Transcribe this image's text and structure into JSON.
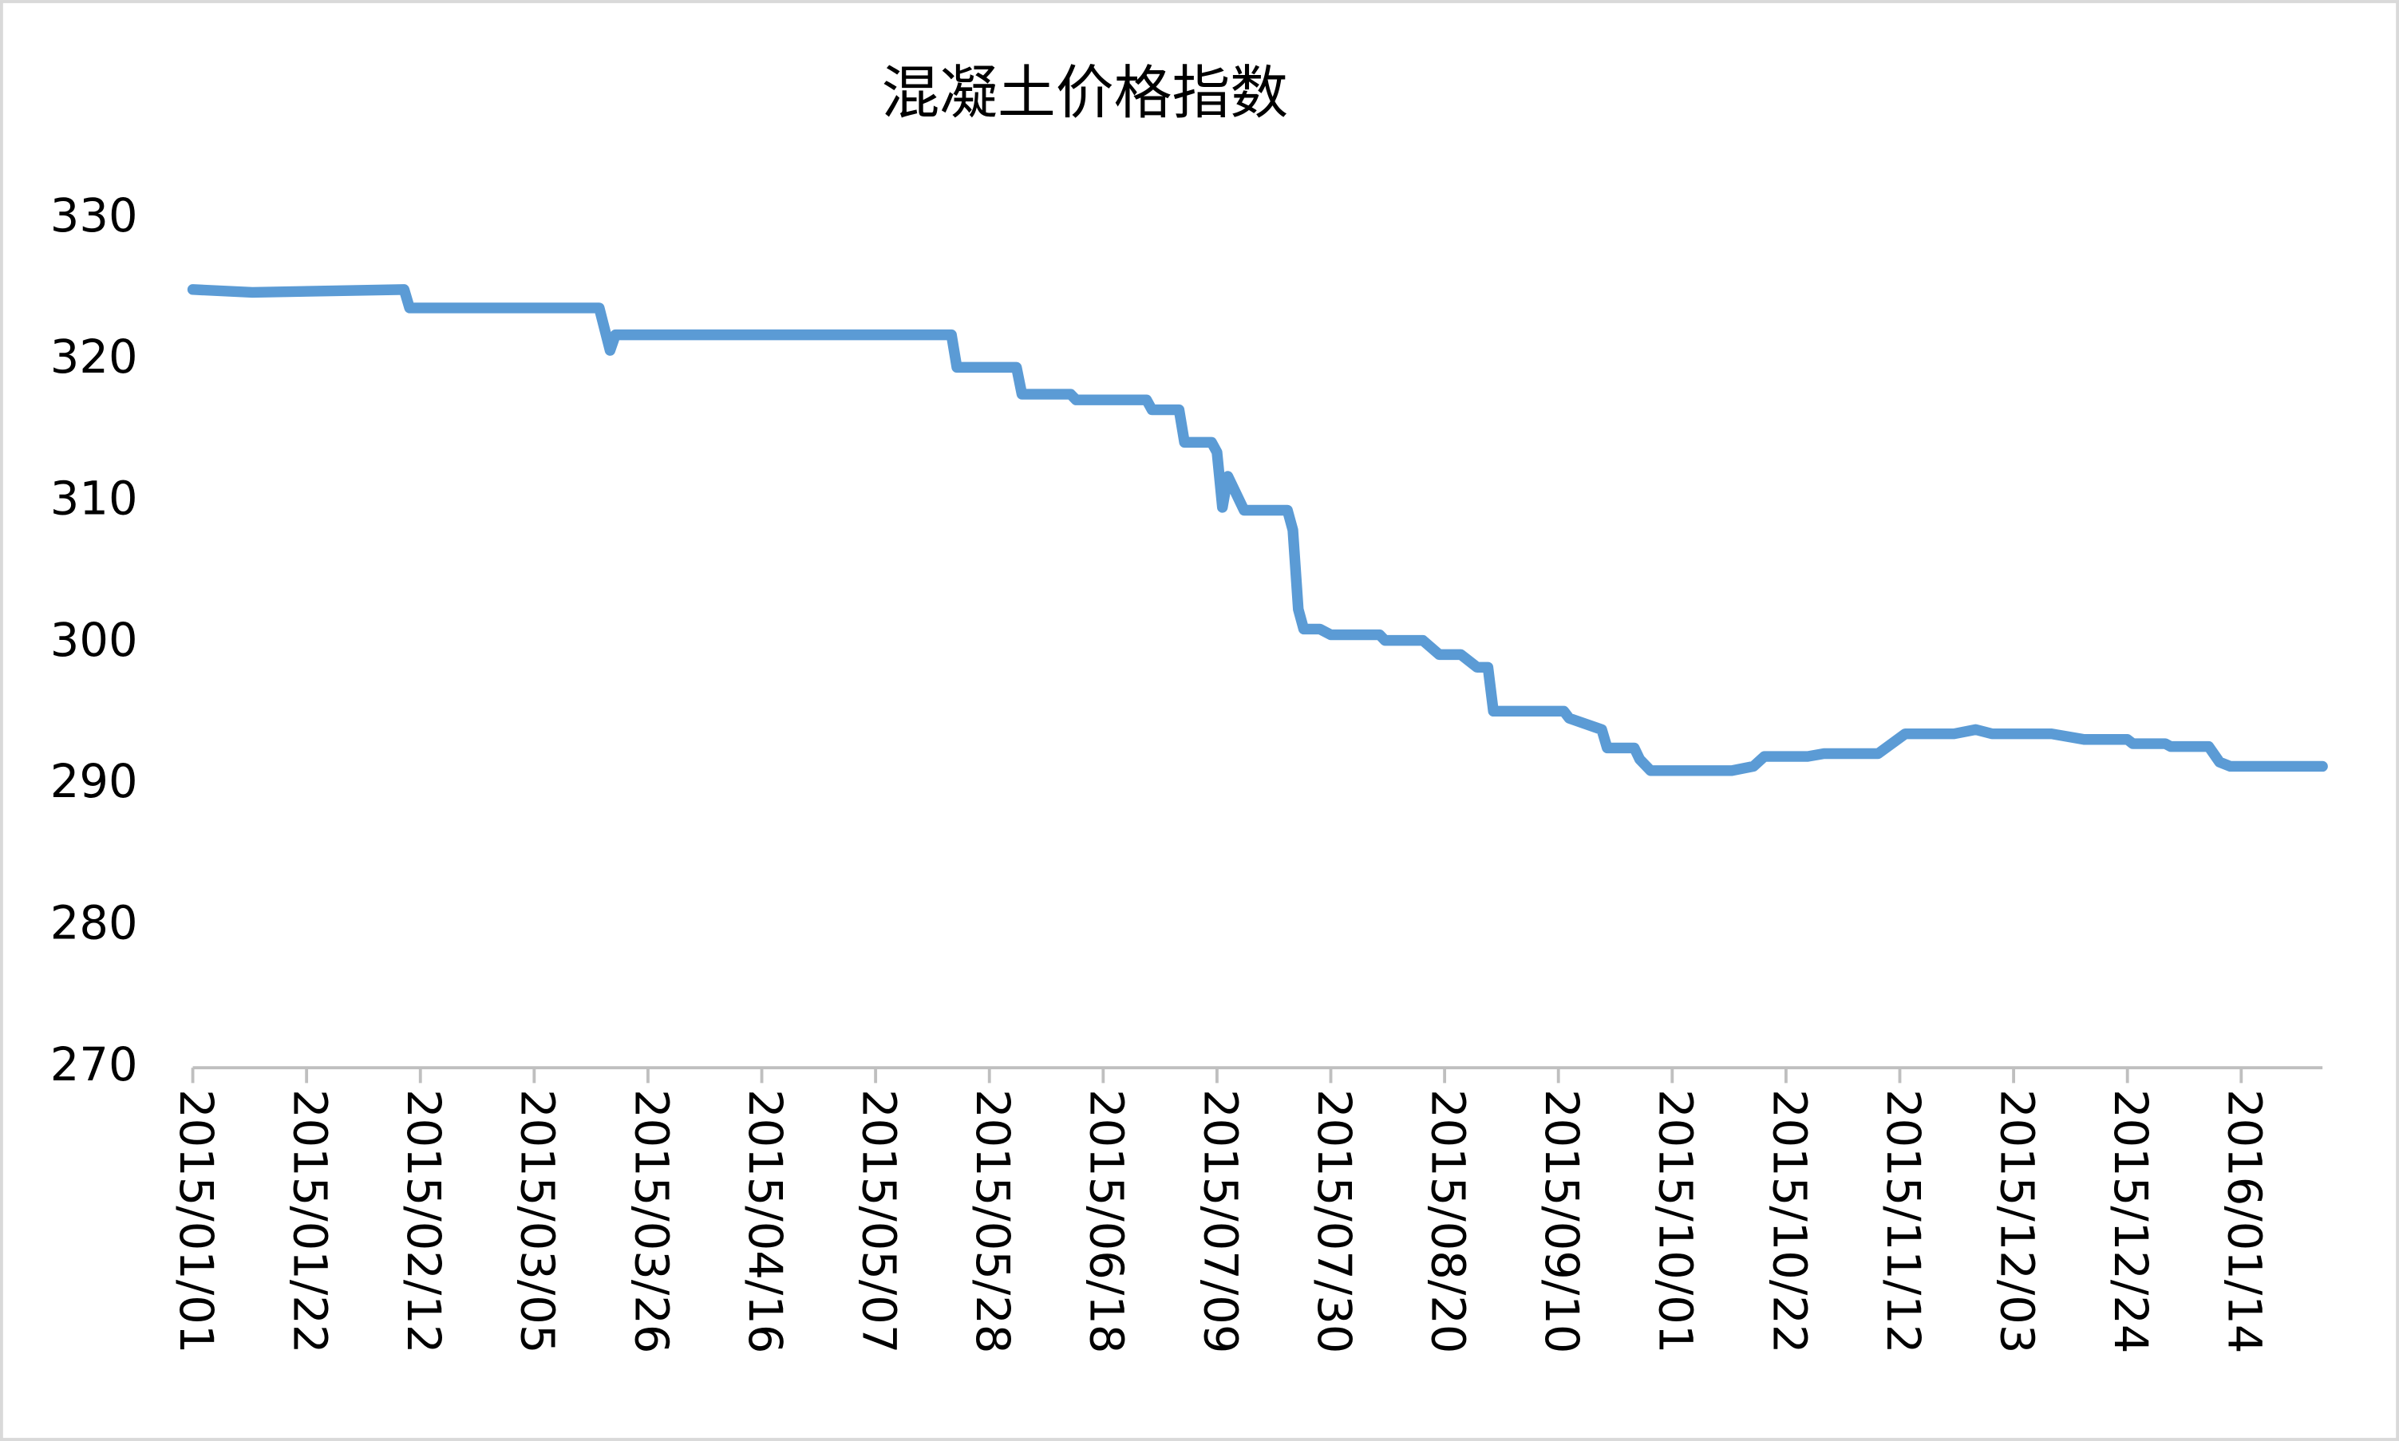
{
  "chart_data": {
    "type": "line",
    "title": "混凝土价格指数",
    "x": [
      "2015/01/01",
      "2015/01/12",
      "2015/02/09",
      "2015/02/10",
      "2015/03/17",
      "2015/03/19",
      "2015/03/20",
      "2015/05/21",
      "2015/05/22",
      "2015/06/02",
      "2015/06/03",
      "2015/06/12",
      "2015/06/13",
      "2015/06/26",
      "2015/06/27",
      "2015/07/02",
      "2015/07/03",
      "2015/07/08",
      "2015/07/09",
      "2015/07/10",
      "2015/07/11",
      "2015/07/14",
      "2015/07/22",
      "2015/07/23",
      "2015/07/24",
      "2015/07/25",
      "2015/07/28",
      "2015/07/30",
      "2015/08/08",
      "2015/08/09",
      "2015/08/16",
      "2015/08/19",
      "2015/08/23",
      "2015/08/26",
      "2015/08/28",
      "2015/08/29",
      "2015/09/11",
      "2015/09/12",
      "2015/09/18",
      "2015/09/19",
      "2015/09/24",
      "2015/09/25",
      "2015/09/27",
      "2015/10/12",
      "2015/10/16",
      "2015/10/18",
      "2015/10/26",
      "2015/10/29",
      "2015/11/08",
      "2015/11/13",
      "2015/11/22",
      "2015/11/26",
      "2015/11/29",
      "2015/12/10",
      "2015/12/16",
      "2015/12/24",
      "2015/12/25",
      "2015/12/31",
      "2016/01/01",
      "2016/01/08",
      "2016/01/10",
      "2016/01/12",
      "2016/01/29"
    ],
    "series": [
      {
        "name": "混凝土价格指数",
        "color": "#5b9bd5",
        "values": [
          325.0,
          324.8,
          325.0,
          323.7,
          323.7,
          320.7,
          321.8,
          321.8,
          319.5,
          319.5,
          317.6,
          317.6,
          317.2,
          317.2,
          316.5,
          316.5,
          314.2,
          314.2,
          313.5,
          309.6,
          311.8,
          309.4,
          309.4,
          308.0,
          302.4,
          301.0,
          301.0,
          300.6,
          300.6,
          300.2,
          300.2,
          299.2,
          299.2,
          298.3,
          298.3,
          295.2,
          295.2,
          294.7,
          293.9,
          292.6,
          292.6,
          291.8,
          291.0,
          291.0,
          291.3,
          292.0,
          292.0,
          292.2,
          292.2,
          293.6,
          293.6,
          293.9,
          293.6,
          293.6,
          293.2,
          293.2,
          292.9,
          292.9,
          292.7,
          292.7,
          291.6,
          291.3,
          291.3
        ]
      }
    ],
    "xlim": [
      "2015/01/01",
      "2016/01/29"
    ],
    "xticks": [
      "2015/01/01",
      "2015/01/22",
      "2015/02/12",
      "2015/03/05",
      "2015/03/26",
      "2015/04/16",
      "2015/05/07",
      "2015/05/28",
      "2015/06/18",
      "2015/07/09",
      "2015/07/30",
      "2015/08/20",
      "2015/09/10",
      "2015/10/01",
      "2015/10/22",
      "2015/11/12",
      "2015/12/03",
      "2015/12/24",
      "2016/01/14"
    ],
    "ylim": [
      270,
      330
    ],
    "yticks": [
      270,
      280,
      290,
      300,
      310,
      320,
      330
    ],
    "grid": false
  }
}
